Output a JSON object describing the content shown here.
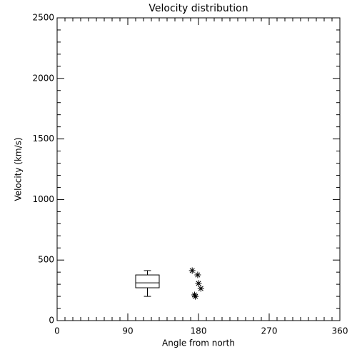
{
  "chart_data": {
    "type": "scatter",
    "title": "Velocity distribution",
    "xlabel": "Angle from north",
    "ylabel": "Velocity (km/s)",
    "xlim": [
      0,
      360
    ],
    "ylim": [
      0,
      2500
    ],
    "xticks": [
      0,
      90,
      180,
      270,
      360
    ],
    "yticks": [
      0,
      500,
      1000,
      1500,
      2000,
      2500
    ],
    "x": [
      172,
      179,
      180,
      183,
      175,
      176
    ],
    "values": [
      413,
      377,
      307,
      265,
      212,
      200
    ],
    "box": {
      "x_range": [
        100,
        130
      ],
      "whisker_low": 200,
      "q1": 271,
      "median": 312,
      "q3": 377,
      "whisker_high": 413
    },
    "color": "#000000"
  }
}
